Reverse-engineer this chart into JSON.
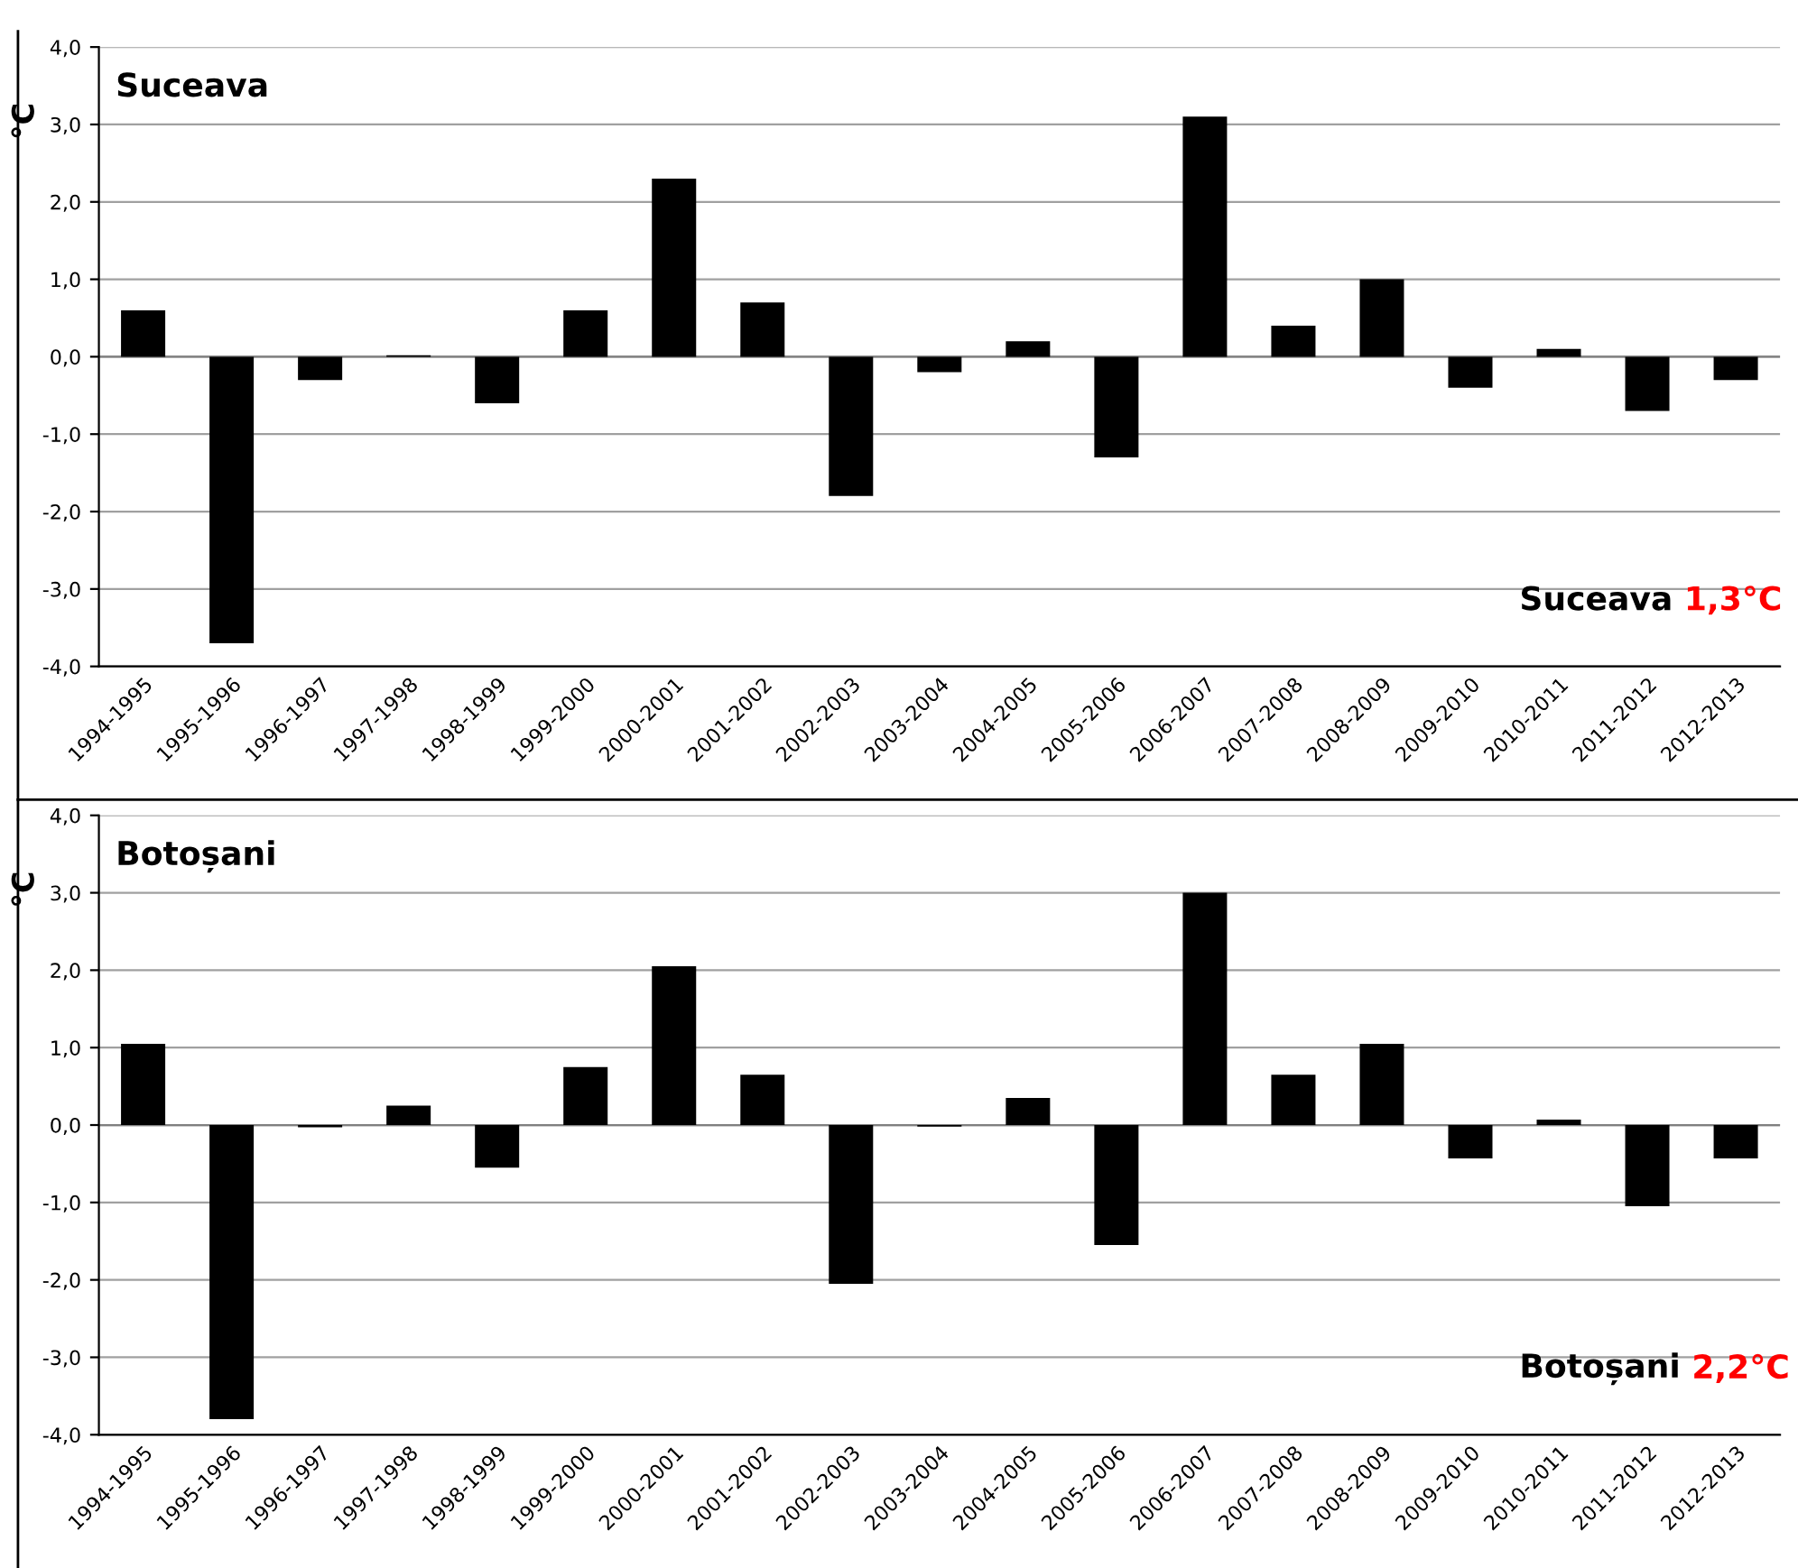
{
  "chart_data": [
    {
      "type": "bar",
      "title": "Suceava",
      "ylabel": "°C",
      "categories": [
        "1994-1995",
        "1995-1996",
        "1996-1997",
        "1997-1998",
        "1998-1999",
        "1999-2000",
        "2000-2001",
        "2001-2002",
        "2002-2003",
        "2003-2004",
        "2004-2005",
        "2005-2006",
        "2006-2007",
        "2007-2008",
        "2008-2009",
        "2009-2010",
        "2010-2011",
        "2011-2012",
        "2012-2013"
      ],
      "values": [
        0.6,
        -3.7,
        -0.3,
        0.02,
        -0.6,
        0.6,
        2.3,
        0.7,
        -1.8,
        -0.2,
        0.2,
        -1.3,
        3.1,
        0.4,
        1.0,
        -0.4,
        0.1,
        -0.7,
        -0.3
      ],
      "color": "#000000",
      "ylim": [
        -4,
        4
      ],
      "yticks": [
        {
          "value": -4,
          "label": "-4,0"
        },
        {
          "value": -3,
          "label": "-3,0"
        },
        {
          "value": -2,
          "label": "-2,0"
        },
        {
          "value": -1,
          "label": "-1,0"
        },
        {
          "value": 0,
          "label": "0,0"
        },
        {
          "value": 1,
          "label": "1,0"
        },
        {
          "value": 2,
          "label": "2,0"
        },
        {
          "value": 3,
          "label": "3,0"
        },
        {
          "value": 4,
          "label": "4,0"
        }
      ],
      "grid": "y",
      "annotations": [
        "Suceava 1,3°C"
      ]
    },
    {
      "type": "bar",
      "title": "Botoșani",
      "ylabel": "°C",
      "categories": [
        "1994-1995",
        "1995-1996",
        "1996-1997",
        "1997-1998",
        "1998-1999",
        "1999-2000",
        "2000-2001",
        "2001-2002",
        "2002-2003",
        "2003-2004",
        "2004-2005",
        "2005-2006",
        "2006-2007",
        "2007-2008",
        "2008-2009",
        "2009-2010",
        "2010-2011",
        "2011-2012",
        "2012-2013"
      ],
      "values": [
        1.05,
        -3.8,
        -0.03,
        0.25,
        -0.55,
        0.75,
        2.05,
        0.65,
        -2.05,
        -0.02,
        0.35,
        -1.55,
        3.0,
        0.65,
        1.05,
        -0.43,
        0.07,
        -1.05,
        -0.43
      ],
      "color": "#000000",
      "ylim": [
        -4,
        4
      ],
      "yticks": [
        {
          "value": -4,
          "label": "-4,0"
        },
        {
          "value": -3,
          "label": "-3,0"
        },
        {
          "value": -2,
          "label": "-2,0"
        },
        {
          "value": -1,
          "label": "-1,0"
        },
        {
          "value": 0,
          "label": "0,0"
        },
        {
          "value": 1,
          "label": "1,0"
        },
        {
          "value": 2,
          "label": "2,0"
        },
        {
          "value": 3,
          "label": "3,0"
        },
        {
          "value": 4,
          "label": "4,0"
        }
      ],
      "grid": "y",
      "annotations": [
        "Botoșani 2,2°C"
      ]
    }
  ]
}
